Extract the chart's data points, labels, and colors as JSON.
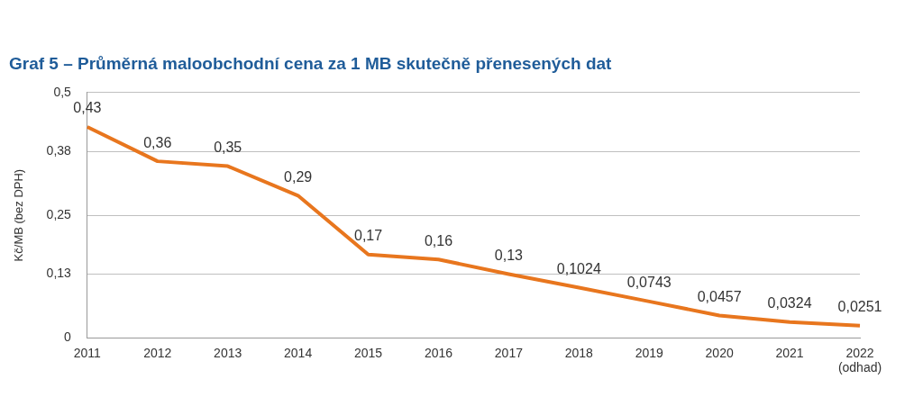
{
  "chart_data": {
    "type": "line",
    "title": "Graf 5 – Průměrná maloobchodní cena za 1 MB skutečně přenesených dat",
    "ylabel": "Kč/MB (bez DPH)",
    "categories": [
      "2011",
      "2012",
      "2013",
      "2014",
      "2015",
      "2016",
      "2017",
      "2018",
      "2019",
      "2020",
      "2021",
      "2022\n(odhad)"
    ],
    "series": [
      {
        "color": "#e8761e",
        "values": [
          0.43,
          0.36,
          0.35,
          0.29,
          0.17,
          0.16,
          0.13,
          0.1024,
          0.0743,
          0.0457,
          0.0324,
          0.0251
        ],
        "value_labels": [
          "0,43",
          "0,36",
          "0,35",
          "0,29",
          "0,17",
          "0,16",
          "0,13",
          "0,1024",
          "0,0743",
          "0,0457",
          "0,0324",
          "0,0251"
        ]
      }
    ],
    "ylim": [
      0,
      0.5
    ],
    "yticks": [
      {
        "value": 0,
        "label": "0"
      },
      {
        "value": 0.13,
        "label": "0,13"
      },
      {
        "value": 0.25,
        "label": "0,25"
      },
      {
        "value": 0.38,
        "label": "0,38"
      },
      {
        "value": 0.5,
        "label": "0,5"
      }
    ],
    "grid": "y",
    "legend": false,
    "marker": "none",
    "line_style": "solid"
  }
}
